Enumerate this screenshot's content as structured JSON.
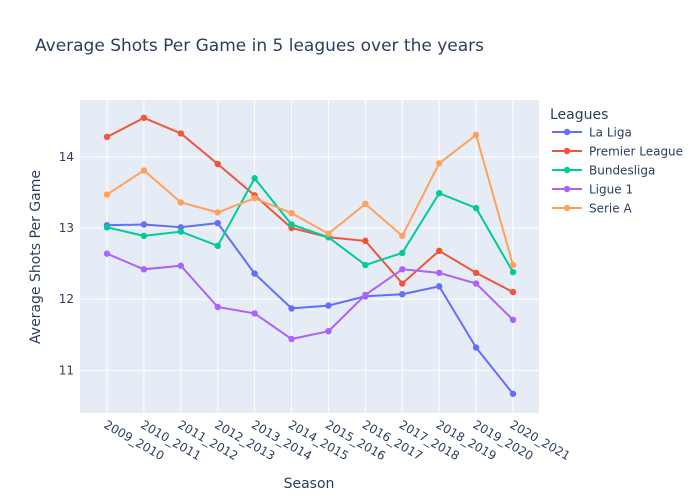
{
  "chart_data": {
    "type": "line",
    "title": "Average Shots Per Game in 5 leagues over the years",
    "xlabel": "Season",
    "ylabel": "Average Shots Per Game",
    "ylim": [
      10.4,
      14.8
    ],
    "yticks": [
      11,
      12,
      13,
      14
    ],
    "grid": true,
    "legend_title": "Leagues",
    "legend_position": "top-right",
    "categories": [
      "2009_2010",
      "2010_2011",
      "2011_2012",
      "2012_2013",
      "2013_2014",
      "2014_2015",
      "2015_2016",
      "2016_2017",
      "2017_2018",
      "2018_2019",
      "2019_2020",
      "2020_2021"
    ],
    "series": [
      {
        "name": "La Liga",
        "color": "#636efa",
        "values": [
          13.04,
          13.05,
          13.01,
          13.07,
          12.36,
          11.87,
          11.91,
          12.04,
          12.07,
          12.18,
          11.32,
          10.67
        ]
      },
      {
        "name": "Premier League",
        "color": "#ef553b",
        "values": [
          14.28,
          14.55,
          14.33,
          13.9,
          13.46,
          13.0,
          12.87,
          12.82,
          12.22,
          12.68,
          12.37,
          12.1
        ]
      },
      {
        "name": "Bundesliga",
        "color": "#00cc96",
        "values": [
          13.01,
          12.89,
          12.95,
          12.75,
          13.7,
          13.05,
          12.87,
          12.48,
          12.65,
          13.49,
          13.28,
          12.38
        ]
      },
      {
        "name": "Ligue 1",
        "color": "#ab63fa",
        "values": [
          12.64,
          12.42,
          12.47,
          11.89,
          11.8,
          11.44,
          11.55,
          12.06,
          12.42,
          12.37,
          12.22,
          11.71
        ]
      },
      {
        "name": "Serie A",
        "color": "#ffa15a",
        "values": [
          13.47,
          13.81,
          13.36,
          13.22,
          13.42,
          13.21,
          12.92,
          13.34,
          12.89,
          13.91,
          14.31,
          12.48
        ]
      }
    ]
  }
}
